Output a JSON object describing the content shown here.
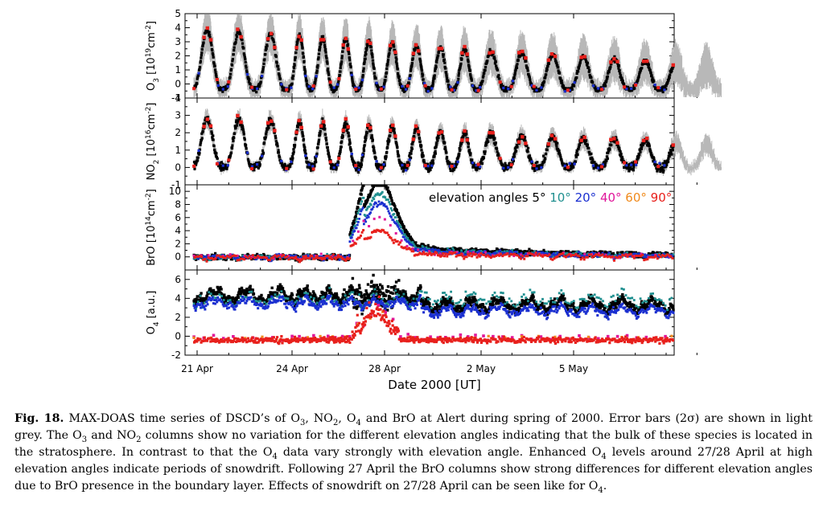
{
  "chart_data": [
    {
      "type": "scatter",
      "panel": "O3",
      "ylabel_main": "O",
      "ylabel_sub": "3",
      "ylabel_open": " [10",
      "ylabel_sup": "19",
      "ylabel_unit": "cm",
      "ylabel_sup2": "-2",
      "ylabel_close": "]",
      "ylim": [
        -1,
        5
      ],
      "yticks": [
        "-1",
        "0",
        "1",
        "2",
        "3",
        "4",
        "5"
      ],
      "diurnal": {
        "period_days": 1,
        "peak_first": 3.9,
        "peak_last": 1.3,
        "trough": -0.4,
        "noise": 0.15
      },
      "error_bars": true
    },
    {
      "type": "scatter",
      "panel": "NO2",
      "ylabel_main": "NO",
      "ylabel_sub": "2",
      "ylabel_open": " [10",
      "ylabel_sup": "16",
      "ylabel_unit": "cm",
      "ylabel_sup2": "-2",
      "ylabel_close": "]",
      "ylim": [
        -1,
        4
      ],
      "yticks": [
        "-1",
        "0",
        "1",
        "2",
        "3",
        "4"
      ],
      "diurnal": {
        "period_days": 1,
        "peak_first": 2.9,
        "peak_last": 1.3,
        "trough": 0.0,
        "noise": 0.2
      },
      "error_bars": true
    },
    {
      "type": "scatter",
      "panel": "BrO",
      "ylabel_main": "BrO [10",
      "ylabel_sup": "14",
      "ylabel_unit": "cm",
      "ylabel_sup2": "-2",
      "ylabel_close": "]",
      "ylim": [
        -2,
        11
      ],
      "yticks": [
        "0",
        "2",
        "4",
        "6",
        "8",
        "10"
      ],
      "event": {
        "start_day": 26.5,
        "peak_day": 27.8,
        "peak_value": 10,
        "baseline": 0
      }
    },
    {
      "type": "scatter",
      "panel": "O4",
      "ylabel_main": "O",
      "ylabel_sub": "4",
      "ylabel_rest": " [a.u.]",
      "ylim": [
        -2,
        7
      ],
      "yticks": [
        "-2",
        "0",
        "2",
        "4",
        "6"
      ],
      "levels": {
        "low_elev": 4.3,
        "mid_elev": 3.5,
        "high_elev": -0.4
      }
    }
  ],
  "x_axis": {
    "title": "Date 2000 [UT]",
    "range_days": [
      20.8,
      30.0
    ],
    "day_offset_may": 30,
    "ticks": [
      {
        "label": "21 Apr",
        "day": 21
      },
      {
        "label": "24 Apr",
        "day": 24
      },
      {
        "label": "28 Apr",
        "day": 28
      },
      {
        "label": "2 May",
        "day": 32
      },
      {
        "label": "5 May",
        "day": 35
      }
    ]
  },
  "legend": {
    "title": "elevation angles",
    "entries": [
      {
        "label": "5°",
        "color": "#000000"
      },
      {
        "label": "10°",
        "color": "#1f8f8f"
      },
      {
        "label": "20°",
        "color": "#1a2fd0"
      },
      {
        "label": "40°",
        "color": "#e0159a"
      },
      {
        "label": "60°",
        "color": "#f08a1c"
      },
      {
        "label": "90°",
        "color": "#e8201c"
      }
    ]
  },
  "colors": {
    "error_bar": "#b8b8b8",
    "axis": "#000000"
  },
  "caption": {
    "label": "Fig. 18.",
    "text_html": "MAX-DOAS time series of DSCD’s of O<sub>3</sub>, NO<sub>2</sub>, O<sub>4</sub> and BrO at Alert during spring of 2000. Error bars (2σ) are shown in light grey. The O<sub>3</sub> and NO<sub>2</sub> columns show no variation for the different elevation angles indicating that the bulk of these species is located in the stratosphere. In contrast to that the O<sub>4</sub> data vary strongly with elevation angle. Enhanced O<sub>4</sub> levels around 27/28 April at high elevation angles indicate periods of snowdrift. Following 27 April the BrO columns show strong differences for different elevation angles due to BrO presence in the boundary layer. Effects of snowdrift on 27/28 April can be seen like for O<sub>4</sub>."
  }
}
